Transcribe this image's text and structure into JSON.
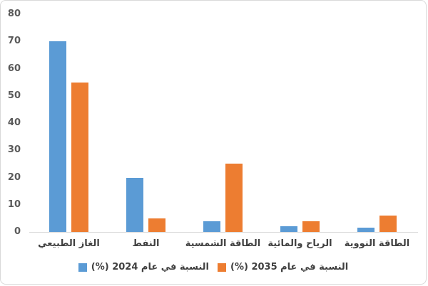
{
  "chart_data": {
    "type": "bar",
    "categories": [
      "الغاز الطبيعي",
      "النفط",
      "الطاقة الشمسية",
      "الرياح والمائية",
      "الطاقة النووية"
    ],
    "series": [
      {
        "name": "النسبة في عام 2024 (%)",
        "color": "#5B9BD5",
        "values": [
          70,
          20,
          4,
          2,
          1.5
        ]
      },
      {
        "name": "النسبة في عام 2035 (%)",
        "color": "#ED7D31",
        "values": [
          55,
          5,
          25,
          4,
          6
        ]
      }
    ],
    "title": "",
    "xlabel": "",
    "ylabel": "",
    "ylim": [
      0,
      80
    ],
    "yticks": [
      0,
      10,
      20,
      30,
      40,
      50,
      60,
      70,
      80
    ],
    "grid": false,
    "legend_position": "bottom"
  },
  "colors": {
    "background": "#FFFFFF",
    "border": "#D9D9D9",
    "axis_line": "#D9D9D9",
    "axis_text": "#595959",
    "label_text": "#404040",
    "series_2024_blue": "#5B9BD5",
    "series_2035_orange": "#ED7D31"
  }
}
